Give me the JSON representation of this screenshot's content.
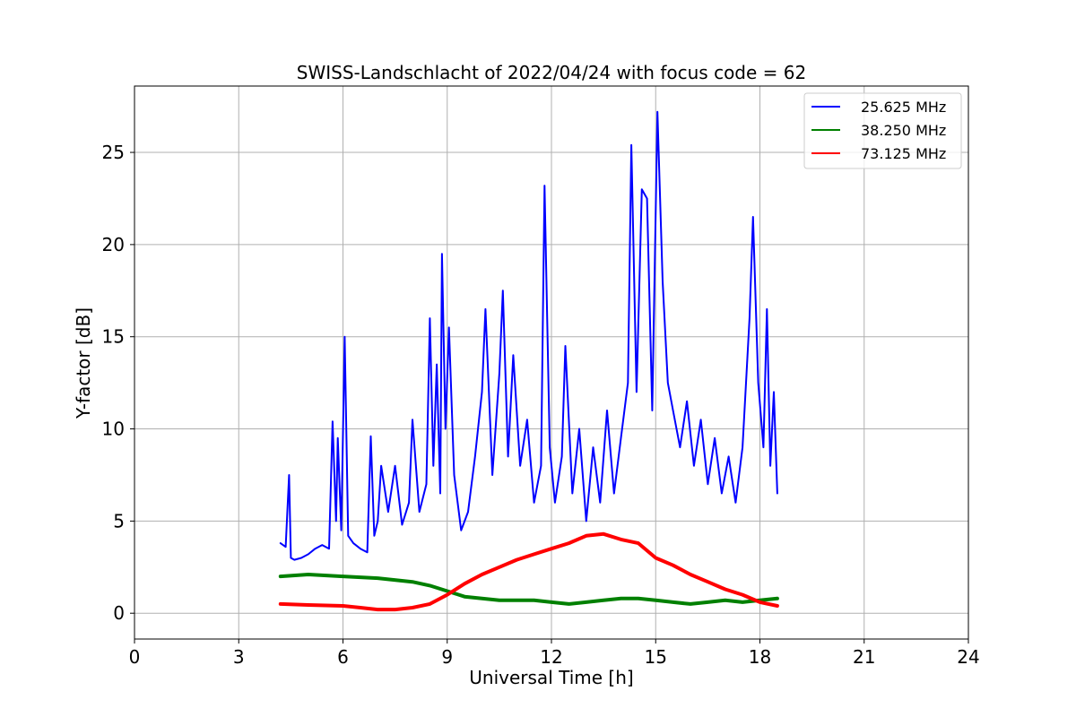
{
  "chart_data": {
    "type": "line",
    "title": "SWISS-Landschlacht of 2022/04/24 with focus code = 62",
    "xlabel": "Universal Time [h]",
    "ylabel": "Y-factor [dB]",
    "xlim": [
      0,
      24
    ],
    "ylim": [
      -1.4,
      28.6
    ],
    "xticks": [
      0,
      3,
      6,
      9,
      12,
      15,
      18,
      21,
      24
    ],
    "yticks": [
      0,
      5,
      10,
      15,
      20,
      25
    ],
    "grid": true,
    "legend_position": "top-right",
    "series": [
      {
        "name": "25.625 MHz",
        "color": "#0000ff",
        "points": [
          [
            4.2,
            3.8
          ],
          [
            4.35,
            3.6
          ],
          [
            4.45,
            7.5
          ],
          [
            4.5,
            3.0
          ],
          [
            4.6,
            2.9
          ],
          [
            4.8,
            3.0
          ],
          [
            5.0,
            3.2
          ],
          [
            5.2,
            3.5
          ],
          [
            5.4,
            3.7
          ],
          [
            5.6,
            3.5
          ],
          [
            5.7,
            10.4
          ],
          [
            5.8,
            5.0
          ],
          [
            5.85,
            9.5
          ],
          [
            5.95,
            4.5
          ],
          [
            6.05,
            15.0
          ],
          [
            6.15,
            4.2
          ],
          [
            6.3,
            3.8
          ],
          [
            6.5,
            3.5
          ],
          [
            6.7,
            3.3
          ],
          [
            6.8,
            9.6
          ],
          [
            6.9,
            4.2
          ],
          [
            7.0,
            5.0
          ],
          [
            7.1,
            8.0
          ],
          [
            7.3,
            5.5
          ],
          [
            7.5,
            8.0
          ],
          [
            7.7,
            4.8
          ],
          [
            7.9,
            6.0
          ],
          [
            8.0,
            10.5
          ],
          [
            8.2,
            5.5
          ],
          [
            8.4,
            7.0
          ],
          [
            8.5,
            16.0
          ],
          [
            8.6,
            8.0
          ],
          [
            8.7,
            13.5
          ],
          [
            8.8,
            6.5
          ],
          [
            8.85,
            19.5
          ],
          [
            8.95,
            10.0
          ],
          [
            9.05,
            15.5
          ],
          [
            9.2,
            7.5
          ],
          [
            9.4,
            4.5
          ],
          [
            9.6,
            5.5
          ],
          [
            9.8,
            8.5
          ],
          [
            10.0,
            12.0
          ],
          [
            10.1,
            16.5
          ],
          [
            10.3,
            7.5
          ],
          [
            10.5,
            13.0
          ],
          [
            10.6,
            17.5
          ],
          [
            10.75,
            8.5
          ],
          [
            10.9,
            14.0
          ],
          [
            11.1,
            8.0
          ],
          [
            11.3,
            10.5
          ],
          [
            11.5,
            6.0
          ],
          [
            11.7,
            8.0
          ],
          [
            11.8,
            23.2
          ],
          [
            11.95,
            9.0
          ],
          [
            12.1,
            6.0
          ],
          [
            12.3,
            8.5
          ],
          [
            12.4,
            14.5
          ],
          [
            12.6,
            6.5
          ],
          [
            12.8,
            10.0
          ],
          [
            13.0,
            5.0
          ],
          [
            13.2,
            9.0
          ],
          [
            13.4,
            6.0
          ],
          [
            13.6,
            11.0
          ],
          [
            13.8,
            6.5
          ],
          [
            14.0,
            9.5
          ],
          [
            14.2,
            12.5
          ],
          [
            14.3,
            25.4
          ],
          [
            14.45,
            12.0
          ],
          [
            14.6,
            23.0
          ],
          [
            14.75,
            22.5
          ],
          [
            14.9,
            11.0
          ],
          [
            15.05,
            27.2
          ],
          [
            15.2,
            18.0
          ],
          [
            15.35,
            12.5
          ],
          [
            15.5,
            11.0
          ],
          [
            15.7,
            9.0
          ],
          [
            15.9,
            11.5
          ],
          [
            16.1,
            8.0
          ],
          [
            16.3,
            10.5
          ],
          [
            16.5,
            7.0
          ],
          [
            16.7,
            9.5
          ],
          [
            16.9,
            6.5
          ],
          [
            17.1,
            8.5
          ],
          [
            17.3,
            6.0
          ],
          [
            17.5,
            9.0
          ],
          [
            17.7,
            16.0
          ],
          [
            17.8,
            21.5
          ],
          [
            17.95,
            12.5
          ],
          [
            18.1,
            9.0
          ],
          [
            18.2,
            16.5
          ],
          [
            18.3,
            8.0
          ],
          [
            18.4,
            12.0
          ],
          [
            18.5,
            6.5
          ]
        ]
      },
      {
        "name": "38.250 MHz",
        "color": "#008000",
        "points": [
          [
            4.2,
            2.0
          ],
          [
            5.0,
            2.1
          ],
          [
            6.0,
            2.0
          ],
          [
            7.0,
            1.9
          ],
          [
            8.0,
            1.7
          ],
          [
            8.5,
            1.5
          ],
          [
            9.0,
            1.2
          ],
          [
            9.5,
            0.9
          ],
          [
            10.0,
            0.8
          ],
          [
            10.5,
            0.7
          ],
          [
            11.0,
            0.7
          ],
          [
            11.5,
            0.7
          ],
          [
            12.0,
            0.6
          ],
          [
            12.5,
            0.5
          ],
          [
            13.0,
            0.6
          ],
          [
            13.5,
            0.7
          ],
          [
            14.0,
            0.8
          ],
          [
            14.5,
            0.8
          ],
          [
            15.0,
            0.7
          ],
          [
            15.5,
            0.6
          ],
          [
            16.0,
            0.5
          ],
          [
            16.5,
            0.6
          ],
          [
            17.0,
            0.7
          ],
          [
            17.5,
            0.6
          ],
          [
            18.0,
            0.7
          ],
          [
            18.5,
            0.8
          ]
        ]
      },
      {
        "name": "73.125 MHz",
        "color": "#ff0000",
        "points": [
          [
            4.2,
            0.5
          ],
          [
            5.0,
            0.45
          ],
          [
            6.0,
            0.4
          ],
          [
            6.5,
            0.3
          ],
          [
            7.0,
            0.2
          ],
          [
            7.5,
            0.2
          ],
          [
            8.0,
            0.3
          ],
          [
            8.5,
            0.5
          ],
          [
            9.0,
            1.0
          ],
          [
            9.5,
            1.6
          ],
          [
            10.0,
            2.1
          ],
          [
            10.5,
            2.5
          ],
          [
            11.0,
            2.9
          ],
          [
            11.5,
            3.2
          ],
          [
            12.0,
            3.5
          ],
          [
            12.5,
            3.8
          ],
          [
            13.0,
            4.2
          ],
          [
            13.5,
            4.3
          ],
          [
            14.0,
            4.0
          ],
          [
            14.5,
            3.8
          ],
          [
            15.0,
            3.0
          ],
          [
            15.5,
            2.6
          ],
          [
            16.0,
            2.1
          ],
          [
            16.5,
            1.7
          ],
          [
            17.0,
            1.3
          ],
          [
            17.5,
            1.0
          ],
          [
            18.0,
            0.6
          ],
          [
            18.5,
            0.4
          ]
        ]
      }
    ]
  }
}
